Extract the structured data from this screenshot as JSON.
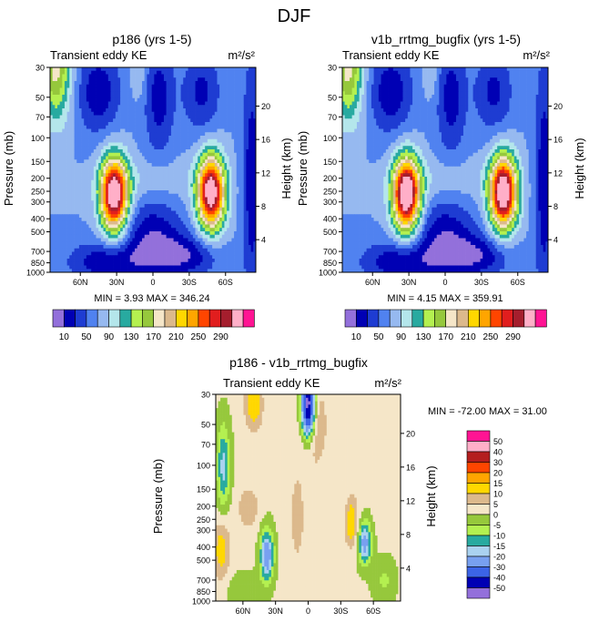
{
  "page_title": "DJF",
  "colors": {
    "ke_scale": [
      "#9370db",
      "#0000b4",
      "#1e3cd2",
      "#5082f0",
      "#96b9f0",
      "#b4e6eb",
      "#28aaa0",
      "#b4f050",
      "#96c83c",
      "#f5e6c8",
      "#dcb98c",
      "#ffd700",
      "#ffa500",
      "#ff4500",
      "#e11e1e",
      "#a51e2d",
      "#ffafc8",
      "#ff1493"
    ],
    "diff_scale": [
      "#9370db",
      "#0000b4",
      "#3c64e6",
      "#78a0f0",
      "#aad2f0",
      "#28aaa0",
      "#b4f050",
      "#96c83c",
      "#f5e6c8",
      "#dcb98c",
      "#ffd700",
      "#ffa500",
      "#ff4500",
      "#b41e1e",
      "#ffafc8",
      "#ff1493"
    ]
  },
  "chart_data": [
    {
      "type": "heatmap",
      "title": "p186 (yrs 1-5)",
      "subtitle_left": "Transient eddy KE",
      "units": "m²/s²",
      "ylabel": "Pressure (mb)",
      "ylabel_right": "Height (km)",
      "xticks": [
        "60N",
        "30N",
        "0",
        "30S",
        "60S"
      ],
      "yticks": [
        "30",
        "50",
        "70",
        "100",
        "150",
        "200",
        "250",
        "300",
        "400",
        "500",
        "700",
        "850",
        "1000"
      ],
      "yticks_right": [
        "20",
        "16",
        "12",
        "8",
        "4"
      ],
      "stats": "MIN =  3.93  MAX = 346.24",
      "levels": [
        10,
        30,
        50,
        70,
        90,
        110,
        130,
        150,
        170,
        190,
        210,
        230,
        250,
        270,
        290,
        310
      ],
      "colorbar_labels": [
        "10",
        "50",
        "90",
        "130",
        "170",
        "210",
        "250",
        "290"
      ],
      "features": [
        {
          "lat": 32,
          "p": 260,
          "peak": 346
        },
        {
          "lat": -48,
          "p": 250,
          "peak": 340
        }
      ]
    },
    {
      "type": "heatmap",
      "title": "v1b_rrtmg_bugfix (yrs 1-5)",
      "subtitle_left": "Transient eddy KE",
      "units": "m²/s²",
      "ylabel": "Pressure (mb)",
      "ylabel_right": "Height (km)",
      "xticks": [
        "60N",
        "30N",
        "0",
        "30S",
        "60S"
      ],
      "yticks": [
        "30",
        "50",
        "70",
        "100",
        "150",
        "200",
        "250",
        "300",
        "400",
        "500",
        "700",
        "850",
        "1000"
      ],
      "yticks_right": [
        "20",
        "16",
        "12",
        "8",
        "4"
      ],
      "stats": "MIN =  4.15  MAX = 359.91",
      "levels": [
        10,
        30,
        50,
        70,
        90,
        110,
        130,
        150,
        170,
        190,
        210,
        230,
        250,
        270,
        290,
        310
      ],
      "colorbar_labels": [
        "10",
        "50",
        "90",
        "130",
        "170",
        "210",
        "250",
        "290"
      ],
      "features": [
        {
          "lat": 32,
          "p": 260,
          "peak": 360
        },
        {
          "lat": -48,
          "p": 250,
          "peak": 352
        }
      ]
    },
    {
      "type": "heatmap",
      "title": "p186 - v1b_rrtmg_bugfix",
      "subtitle_left": "Transient eddy KE",
      "units": "m²/s²",
      "ylabel": "Pressure (mb)",
      "ylabel_right": "Height (km)",
      "xticks": [
        "60N",
        "30N",
        "0",
        "30S",
        "60S"
      ],
      "yticks": [
        "30",
        "50",
        "70",
        "100",
        "150",
        "200",
        "250",
        "300",
        "400",
        "500",
        "700",
        "850",
        "1000"
      ],
      "yticks_right": [
        "20",
        "16",
        "12",
        "8",
        "4"
      ],
      "stats": "MIN = -72.00  MAX =  31.00",
      "levels": [
        -50,
        -40,
        -30,
        -20,
        -15,
        -10,
        -5,
        0,
        5,
        10,
        15,
        20,
        30,
        40,
        50
      ],
      "colorbar_labels": [
        "50",
        "40",
        "30",
        "20",
        "15",
        "10",
        "5",
        "0",
        "-5",
        "-10",
        "-15",
        "-20",
        "-30",
        "-40",
        "-50"
      ]
    }
  ]
}
